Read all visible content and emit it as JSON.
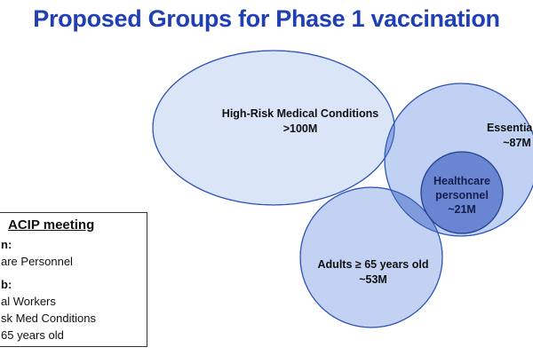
{
  "title": "Proposed Groups for Phase 1 vaccination",
  "colors": {
    "title": "#1f3fb3",
    "large_circle_fill": "#dbe5f8",
    "circle_fill": "#bccdf2",
    "overlap_fill": "#6f8fd3",
    "center_fill": "#4a6ac4",
    "circle_stroke": "#2f55b8"
  },
  "venn": {
    "groups": [
      {
        "name_lines": [
          "High-Risk Medical Conditions",
          ">100M"
        ]
      },
      {
        "name_lines": [
          "Essential w",
          "~87M"
        ]
      },
      {
        "name_lines": [
          "Adults ≥ 65 years old",
          "~53M"
        ]
      },
      {
        "name_lines": [
          "Healthcare",
          "personnel",
          "~21M"
        ]
      }
    ]
  },
  "info_box": {
    "title": "ACIP meeting",
    "lines": [
      {
        "text": "n:",
        "bold": true
      },
      {
        "text": "are Personnel",
        "bold": false
      },
      {
        "text": "b:",
        "bold": true
      },
      {
        "text": "al Workers",
        "bold": false
      },
      {
        "text": "sk Med Conditions",
        "bold": false
      },
      {
        "text": "65 years old",
        "bold": false
      }
    ]
  }
}
